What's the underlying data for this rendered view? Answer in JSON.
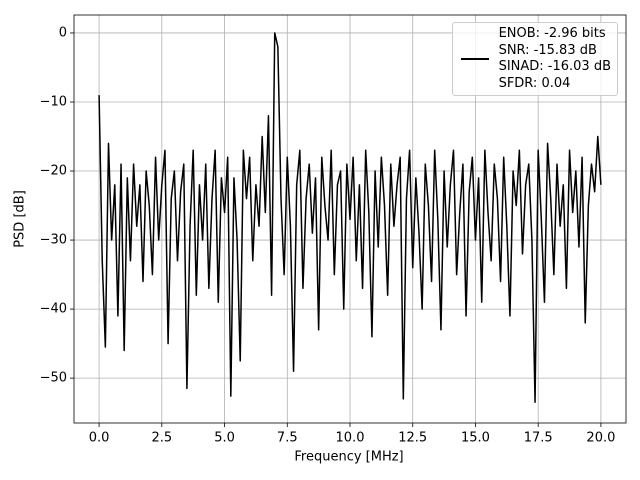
{
  "chart_data": {
    "type": "line",
    "xlabel": "Frequency [MHz]",
    "ylabel": "PSD [dB]",
    "x": [
      0,
      0.125,
      0.25,
      0.375,
      0.5,
      0.625,
      0.75,
      0.875,
      1,
      1.125,
      1.25,
      1.375,
      1.5,
      1.625,
      1.75,
      1.875,
      2,
      2.125,
      2.25,
      2.375,
      2.5,
      2.625,
      2.75,
      2.875,
      3,
      3.125,
      3.25,
      3.375,
      3.5,
      3.625,
      3.75,
      3.875,
      4,
      4.125,
      4.25,
      4.375,
      4.5,
      4.625,
      4.75,
      4.875,
      5,
      5.125,
      5.25,
      5.375,
      5.5,
      5.625,
      5.75,
      5.875,
      6,
      6.125,
      6.25,
      6.375,
      6.5,
      6.625,
      6.75,
      6.875,
      7,
      7.125,
      7.25,
      7.375,
      7.5,
      7.625,
      7.75,
      7.875,
      8,
      8.125,
      8.25,
      8.375,
      8.5,
      8.625,
      8.75,
      8.875,
      9,
      9.125,
      9.25,
      9.375,
      9.5,
      9.625,
      9.75,
      9.875,
      10,
      10.125,
      10.25,
      10.375,
      10.5,
      10.625,
      10.75,
      10.875,
      11,
      11.125,
      11.25,
      11.375,
      11.5,
      11.625,
      11.75,
      11.875,
      12,
      12.125,
      12.25,
      12.375,
      12.5,
      12.625,
      12.75,
      12.875,
      13,
      13.125,
      13.25,
      13.375,
      13.5,
      13.625,
      13.75,
      13.875,
      14,
      14.125,
      14.25,
      14.375,
      14.5,
      14.625,
      14.75,
      14.875,
      15,
      15.125,
      15.25,
      15.375,
      15.5,
      15.625,
      15.75,
      15.875,
      16,
      16.125,
      16.25,
      16.375,
      16.5,
      16.625,
      16.75,
      16.875,
      17,
      17.125,
      17.25,
      17.375,
      17.5,
      17.625,
      17.75,
      17.875,
      18,
      18.125,
      18.25,
      18.375,
      18.5,
      18.625,
      18.75,
      18.875,
      19,
      19.125,
      19.25,
      19.375,
      19.5,
      19.625,
      19.75,
      19.875,
      20
    ],
    "series": [
      {
        "name": "ENOB: -2.96 bits\nSNR: -15.83 dB\nSINAD: -16.03 dB\nSFDR: 0.04",
        "color": "#000000",
        "values": [
          -9,
          -33,
          -45.5,
          -16,
          -30,
          -22,
          -41,
          -19,
          -46,
          -21,
          -33,
          -19,
          -28,
          -22,
          -36,
          -20,
          -25,
          -35,
          -18,
          -30,
          -22,
          -17,
          -45,
          -24,
          -20,
          -33,
          -23,
          -19,
          -51.5,
          -28,
          -17,
          -38,
          -22,
          -30,
          -19,
          -37,
          -24,
          -17,
          -39,
          -21,
          -26,
          -18,
          -52.6,
          -21,
          -30,
          -47.5,
          -17,
          -24,
          -18,
          -33,
          -22,
          -28,
          -15,
          -26,
          -12,
          -38,
          0,
          -2,
          -24,
          -35,
          -18,
          -28,
          -49,
          -22,
          -17,
          -37,
          -24,
          -19,
          -29,
          -21,
          -43,
          -18,
          -25,
          -30,
          -17,
          -35,
          -22,
          -20,
          -40,
          -19,
          -27,
          -18,
          -33,
          -22,
          -37,
          -17,
          -26,
          -44,
          -20,
          -31,
          -18,
          -25,
          -38,
          -19,
          -28,
          -22,
          -18,
          -53,
          -24,
          -17,
          -34,
          -21,
          -29,
          -40,
          -19,
          -25,
          -36,
          -17,
          -27,
          -43,
          -20,
          -31,
          -22,
          -17,
          -35,
          -26,
          -19,
          -41,
          -23,
          -18,
          -30,
          -21,
          -39,
          -17,
          -26,
          -33,
          -19,
          -24,
          -36,
          -18,
          -28,
          -41,
          -20,
          -25,
          -17,
          -32,
          -22,
          -19,
          -30,
          -53.5,
          -17,
          -27,
          -39,
          -16,
          -24,
          -35,
          -19,
          -28,
          -22,
          -37,
          -17,
          -26,
          -20,
          -31,
          -18,
          -42,
          -25,
          -19,
          -23,
          -15,
          -22
        ]
      }
    ],
    "xlim": [
      -1,
      21
    ],
    "xticks": [
      {
        "value": 0,
        "label": "0.0"
      },
      {
        "value": 2.5,
        "label": "2.5"
      },
      {
        "value": 5,
        "label": "5.0"
      },
      {
        "value": 7.5,
        "label": "7.5"
      },
      {
        "value": 10,
        "label": "10.0"
      },
      {
        "value": 12.5,
        "label": "12.5"
      },
      {
        "value": 15,
        "label": "15.0"
      },
      {
        "value": 17.5,
        "label": "17.5"
      },
      {
        "value": 20,
        "label": "20.0"
      }
    ],
    "ylim": [
      -56.5,
      2.6
    ],
    "yticks": [
      {
        "value": -50,
        "label": "−50"
      },
      {
        "value": -40,
        "label": "−40"
      },
      {
        "value": -30,
        "label": "−30"
      },
      {
        "value": -20,
        "label": "−20"
      },
      {
        "value": -10,
        "label": "−10"
      },
      0
    ],
    "grid": true,
    "legend": "upper right"
  }
}
